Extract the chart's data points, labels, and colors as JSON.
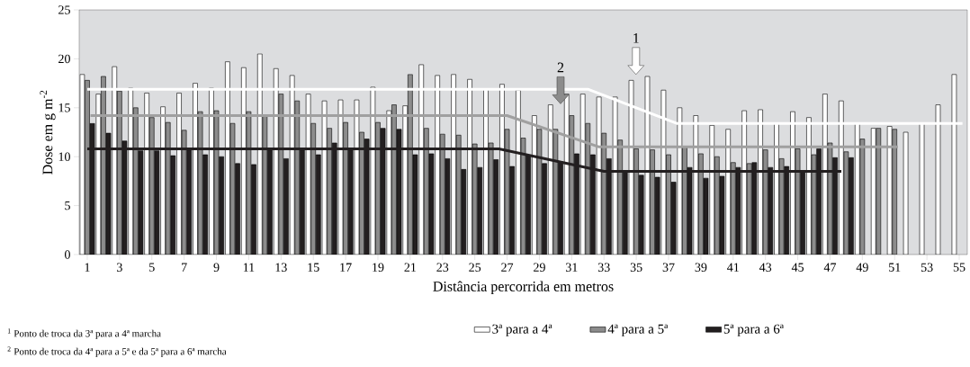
{
  "chart_data": {
    "type": "bar",
    "xlabel": "Distância percorrida em metros",
    "ylabel": "Dose em g m$^{-2}$",
    "x": [
      1,
      2,
      3,
      4,
      5,
      6,
      7,
      8,
      9,
      10,
      11,
      12,
      13,
      14,
      15,
      16,
      17,
      18,
      19,
      20,
      21,
      22,
      23,
      24,
      25,
      26,
      27,
      28,
      29,
      30,
      31,
      32,
      33,
      34,
      35,
      36,
      37,
      38,
      39,
      40,
      41,
      42,
      43,
      44,
      45,
      46,
      47,
      48,
      49,
      50,
      51,
      52,
      53,
      54,
      55
    ],
    "xlim": [
      0.5,
      55.5
    ],
    "xticks": [
      1,
      3,
      5,
      7,
      9,
      11,
      13,
      15,
      17,
      19,
      21,
      23,
      25,
      27,
      29,
      31,
      33,
      35,
      37,
      39,
      41,
      43,
      45,
      47,
      49,
      51,
      53,
      55
    ],
    "ylim": [
      0,
      25
    ],
    "yticks": [
      0,
      5,
      10,
      15,
      20,
      25
    ],
    "legend": "bottom",
    "series": [
      {
        "name": "3ª para a 4ª",
        "color": "#ffffff",
        "values": [
          18.4,
          16.4,
          19.2,
          17.0,
          16.5,
          15.1,
          16.5,
          17.5,
          17.0,
          19.7,
          19.1,
          20.5,
          19.0,
          18.3,
          16.4,
          15.7,
          15.8,
          15.8,
          17.1,
          14.7,
          15.2,
          19.4,
          18.3,
          18.4,
          17.9,
          16.9,
          17.4,
          16.8,
          14.2,
          15.3,
          16.4,
          16.4,
          16.1,
          16.1,
          17.8,
          18.2,
          16.8,
          15.0,
          14.2,
          13.2,
          12.8,
          14.7,
          14.8,
          13.4,
          14.6,
          14.0,
          16.4,
          15.7,
          13.4,
          12.9,
          13.1,
          12.5,
          13.4,
          15.3,
          18.4
        ]
      },
      {
        "name": "4ª para a 5ª",
        "color": "#8c8c8c",
        "values": [
          17.8,
          18.2,
          16.7,
          15.0,
          14.0,
          13.5,
          12.7,
          14.6,
          14.7,
          13.4,
          14.6,
          14.2,
          16.4,
          15.7,
          13.4,
          12.9,
          13.5,
          12.5,
          13.5,
          15.3,
          18.4,
          12.9,
          12.3,
          12.2,
          11.3,
          11.4,
          12.8,
          11.9,
          12.8,
          12.8,
          14.2,
          13.4,
          12.4,
          11.7,
          10.8,
          10.7,
          10.2,
          11.0,
          10.3,
          10.0,
          9.4,
          9.3,
          10.7,
          9.8,
          10.8,
          10.2,
          11.4,
          10.5,
          11.8,
          12.9,
          12.8,
          null,
          null,
          null,
          null
        ]
      },
      {
        "name": "5ª para a 6ª",
        "color": "#231f20",
        "values": [
          13.4,
          12.4,
          11.6,
          10.6,
          10.6,
          10.1,
          10.7,
          10.2,
          10.0,
          9.3,
          9.2,
          10.7,
          9.8,
          10.7,
          10.2,
          11.4,
          10.7,
          11.8,
          12.9,
          12.8,
          10.2,
          10.3,
          9.8,
          8.7,
          8.9,
          9.7,
          9.0,
          10.1,
          9.3,
          9.5,
          10.3,
          10.2,
          9.8,
          8.5,
          8.1,
          7.9,
          7.4,
          8.9,
          7.8,
          8.0,
          8.9,
          9.4,
          8.9,
          9.0,
          8.5,
          10.8,
          9.9,
          9.9,
          null,
          null,
          null,
          null,
          null,
          null,
          null
        ]
      },
      {
        "type": "line",
        "color": "#ffffff",
        "x": [
          1,
          32,
          37.5,
          55.2
        ],
        "values": [
          16.9,
          16.9,
          13.4,
          13.4
        ]
      },
      {
        "type": "line",
        "color": "#a0a0a0",
        "x": [
          1.2,
          27,
          32.7,
          51.2
        ],
        "values": [
          14.2,
          14.2,
          11.0,
          11.0
        ]
      },
      {
        "type": "line",
        "color": "#231f20",
        "x": [
          1.0,
          26.5,
          33,
          47.7
        ],
        "values": [
          10.8,
          10.8,
          8.5,
          8.5
        ]
      }
    ],
    "annotations": [
      "1",
      "2",
      "$^{1}$ Ponto de troca da 3ª para a 4ª marcha",
      "$^{2}$ Ponto de troca da 4ª para a 5ª e da 5ª para a 6ª marcha"
    ]
  }
}
